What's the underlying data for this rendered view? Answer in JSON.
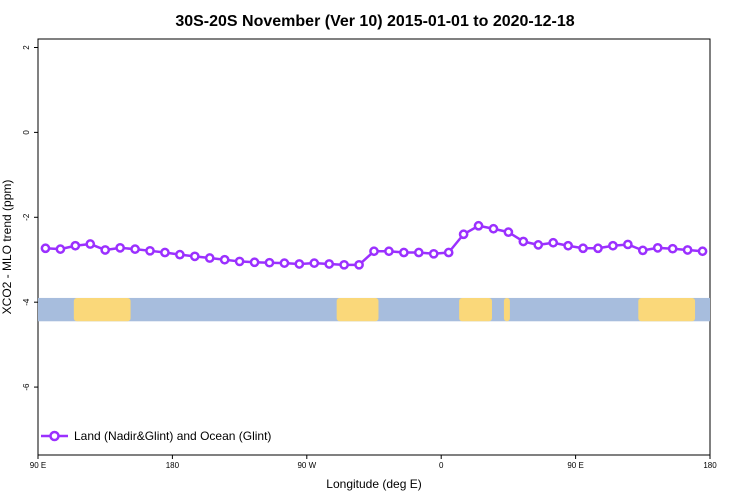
{
  "chart_data": {
    "type": "line",
    "title": "30S-20S November (Ver 10)   2015-01-01 to 2020-12-18",
    "xlabel": "Longitude (deg E)",
    "ylabel": "XCO2 - MLO trend (ppm)",
    "xlim": [
      90,
      540
    ],
    "ylim": [
      -7.6,
      2.2
    ],
    "x_ticks": [
      {
        "value": 90,
        "label": "90 E"
      },
      {
        "value": 180,
        "label": "180"
      },
      {
        "value": 270,
        "label": "90 W"
      },
      {
        "value": 360,
        "label": "0"
      },
      {
        "value": 450,
        "label": "90 E"
      },
      {
        "value": 540,
        "label": "180"
      }
    ],
    "y_ticks": [
      {
        "value": 2,
        "label": "2"
      },
      {
        "value": 0,
        "label": "0"
      },
      {
        "value": -2,
        "label": "-2"
      },
      {
        "value": -4,
        "label": "-4"
      },
      {
        "value": -6,
        "label": "-6"
      }
    ],
    "series": [
      {
        "name": "Land (Nadir&Glint) and Ocean (Glint)",
        "color": "#9b30ff",
        "x": [
          95,
          105,
          115,
          125,
          135,
          145,
          155,
          165,
          175,
          185,
          195,
          205,
          215,
          225,
          235,
          245,
          255,
          265,
          275,
          285,
          295,
          305,
          315,
          325,
          335,
          345,
          355,
          365,
          375,
          385,
          395,
          405,
          415,
          425,
          435,
          445,
          455,
          465,
          475,
          485,
          495,
          505,
          515,
          525,
          535
        ],
        "y": [
          -2.73,
          -2.75,
          -2.67,
          -2.63,
          -2.77,
          -2.72,
          -2.75,
          -2.79,
          -2.83,
          -2.88,
          -2.92,
          -2.96,
          -3.0,
          -3.04,
          -3.06,
          -3.07,
          -3.08,
          -3.1,
          -3.08,
          -3.1,
          -3.12,
          -3.12,
          -2.8,
          -2.8,
          -2.83,
          -2.83,
          -2.86,
          -2.83,
          -2.4,
          -2.2,
          -2.27,
          -2.35,
          -2.57,
          -2.65,
          -2.6,
          -2.67,
          -2.73,
          -2.73,
          -2.67,
          -2.64,
          -2.78,
          -2.72,
          -2.74,
          -2.77,
          -2.8
        ]
      }
    ],
    "map_strip": {
      "y_range": [
        -4.45,
        -3.9
      ],
      "ocean_color": "#a7bddd",
      "land_color": "#fad87a",
      "land_x_ranges": [
        [
          114,
          152
        ],
        [
          290,
          318
        ],
        [
          372,
          394
        ],
        [
          402,
          406
        ],
        [
          492,
          530
        ]
      ]
    },
    "legend": {
      "position": "bottom-left"
    },
    "grid": false
  }
}
